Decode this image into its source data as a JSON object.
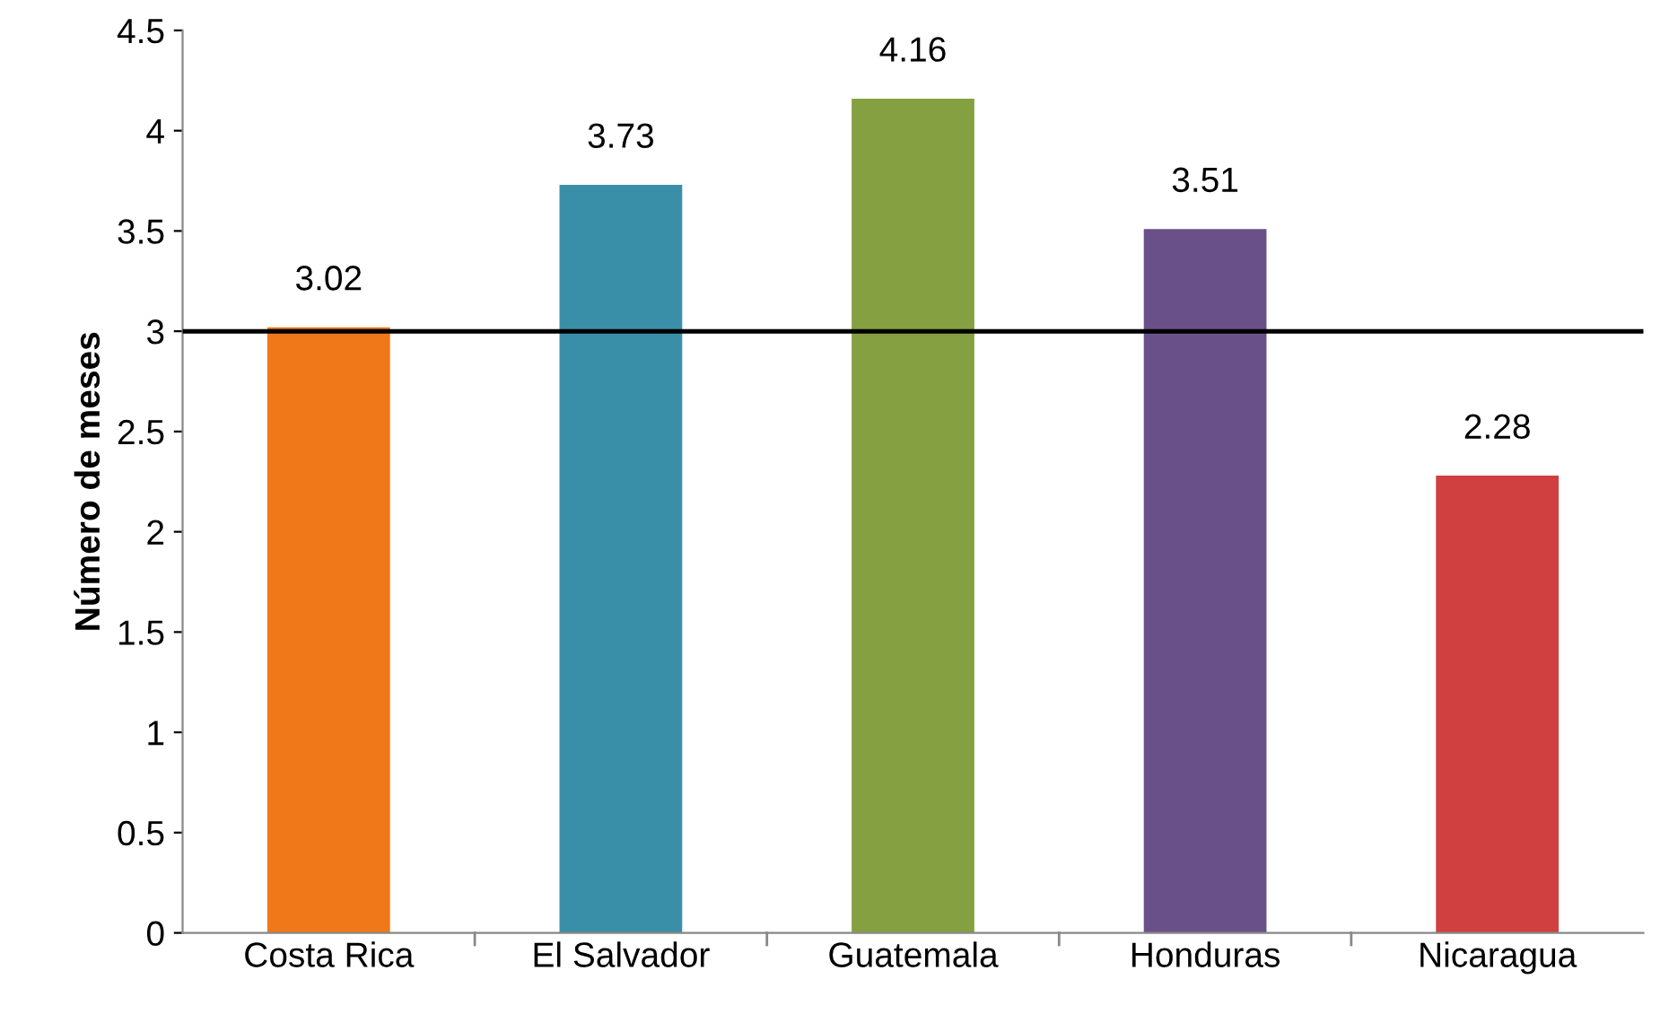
{
  "chart_data": {
    "type": "bar",
    "ylabel": "Número de meses",
    "categories": [
      "Costa Rica",
      "El Salvador",
      "Guatemala",
      "Honduras",
      "Nicaragua"
    ],
    "values": [
      3.02,
      3.73,
      4.16,
      3.51,
      2.28
    ],
    "colors": [
      "#f07818",
      "#3a8fa8",
      "#84a040",
      "#6a5088",
      "#d04040"
    ],
    "ylim": [
      0,
      4.5
    ],
    "yticks": [
      0,
      0.5,
      1,
      1.5,
      2,
      2.5,
      3,
      3.5,
      4,
      4.5
    ],
    "data_labels": true,
    "ref_lines": [
      {
        "axis": "y",
        "value": 3,
        "color": "#000000"
      }
    ]
  }
}
